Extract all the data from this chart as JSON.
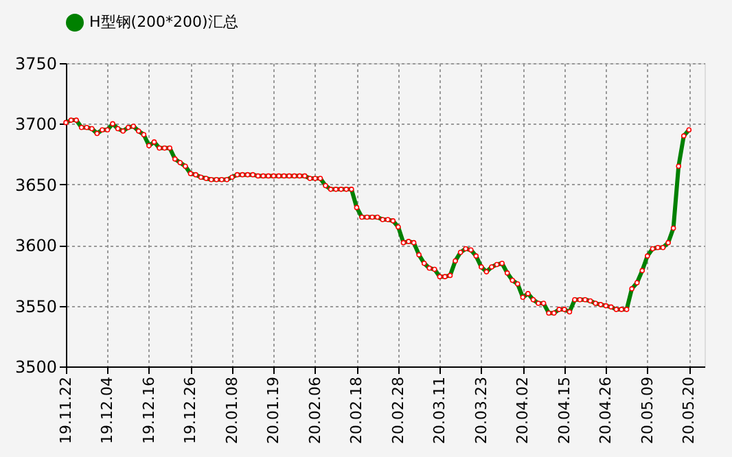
{
  "chart_data": {
    "type": "line",
    "categories": [
      "19.11.22",
      null,
      null,
      null,
      null,
      null,
      null,
      null,
      "19.12.04",
      null,
      null,
      null,
      null,
      null,
      null,
      null,
      "19.12.16",
      null,
      null,
      null,
      null,
      null,
      null,
      null,
      "19.12.26",
      null,
      null,
      null,
      null,
      null,
      null,
      null,
      "20.01.08",
      null,
      null,
      null,
      null,
      null,
      null,
      null,
      "20.01.19",
      null,
      null,
      null,
      null,
      null,
      null,
      null,
      "20.02.06",
      null,
      null,
      null,
      null,
      null,
      null,
      null,
      "20.02.18",
      null,
      null,
      null,
      null,
      null,
      null,
      null,
      "20.02.28",
      null,
      null,
      null,
      null,
      null,
      null,
      null,
      "20.03.11",
      null,
      null,
      null,
      null,
      null,
      null,
      null,
      "20.03.23",
      null,
      null,
      null,
      null,
      null,
      null,
      null,
      "20.04.02",
      null,
      null,
      null,
      null,
      null,
      null,
      null,
      "20.04.15",
      null,
      null,
      null,
      null,
      null,
      null,
      null,
      "20.04.26",
      null,
      null,
      null,
      null,
      null,
      null,
      null,
      "20.05.09",
      null,
      null,
      null,
      null,
      null,
      null,
      null,
      "20.05.20"
    ],
    "series": [
      {
        "name": "H型钢(200*200)汇总",
        "color": "#008000",
        "values": [
          3701,
          3703,
          3703,
          3697,
          3697,
          3696,
          3692,
          3695,
          3695,
          3700,
          3696,
          3694,
          3697,
          3698,
          3694,
          3691,
          3682,
          3685,
          3680,
          3680,
          3680,
          3671,
          3668,
          3665,
          3659,
          3658,
          3656,
          3655,
          3654,
          3654,
          3654,
          3654,
          3656,
          3658,
          3658,
          3658,
          3658,
          3657,
          3657,
          3657,
          3657,
          3657,
          3657,
          3657,
          3657,
          3657,
          3657,
          3655,
          3655,
          3655,
          3649,
          3646,
          3646,
          3646,
          3646,
          3646,
          3631,
          3623,
          3623,
          3623,
          3623,
          3621,
          3621,
          3620,
          3615,
          3602,
          3603,
          3602,
          3592,
          3585,
          3581,
          3580,
          3574,
          3574,
          3575,
          3587,
          3594,
          3597,
          3596,
          3591,
          3582,
          3578,
          3582,
          3584,
          3585,
          3577,
          3571,
          3568,
          3557,
          3560,
          3555,
          3552,
          3552,
          3544,
          3544,
          3547,
          3547,
          3545,
          3555,
          3555,
          3555,
          3554,
          3552,
          3551,
          3550,
          3549,
          3547,
          3547,
          3547,
          3564,
          3569,
          3579,
          3591,
          3597,
          3598,
          3598,
          3602,
          3614,
          3665,
          3690,
          3695
        ]
      }
    ],
    "ylim": [
      3500,
      3750
    ],
    "yticks": [
      3500,
      3550,
      3600,
      3650,
      3700,
      3750
    ],
    "grid": true,
    "legend": "top",
    "marker": "circle",
    "line_style": "solid"
  }
}
